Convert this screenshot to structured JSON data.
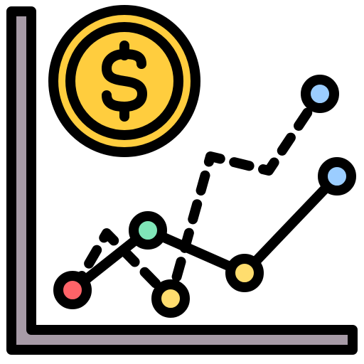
{
  "icon": {
    "subject": "financial-chart-icon",
    "symbol": "$",
    "colors": {
      "outline": "#000000",
      "axis_fill": "#a79ba7",
      "coin_outer": "#ffcd3e",
      "coin_ring": "#ffcd3e",
      "marker_red": "#ff6368",
      "marker_mint": "#7fe6b8",
      "marker_yellow": "#ffdd6e",
      "marker_blue": "#9bcdff"
    }
  }
}
